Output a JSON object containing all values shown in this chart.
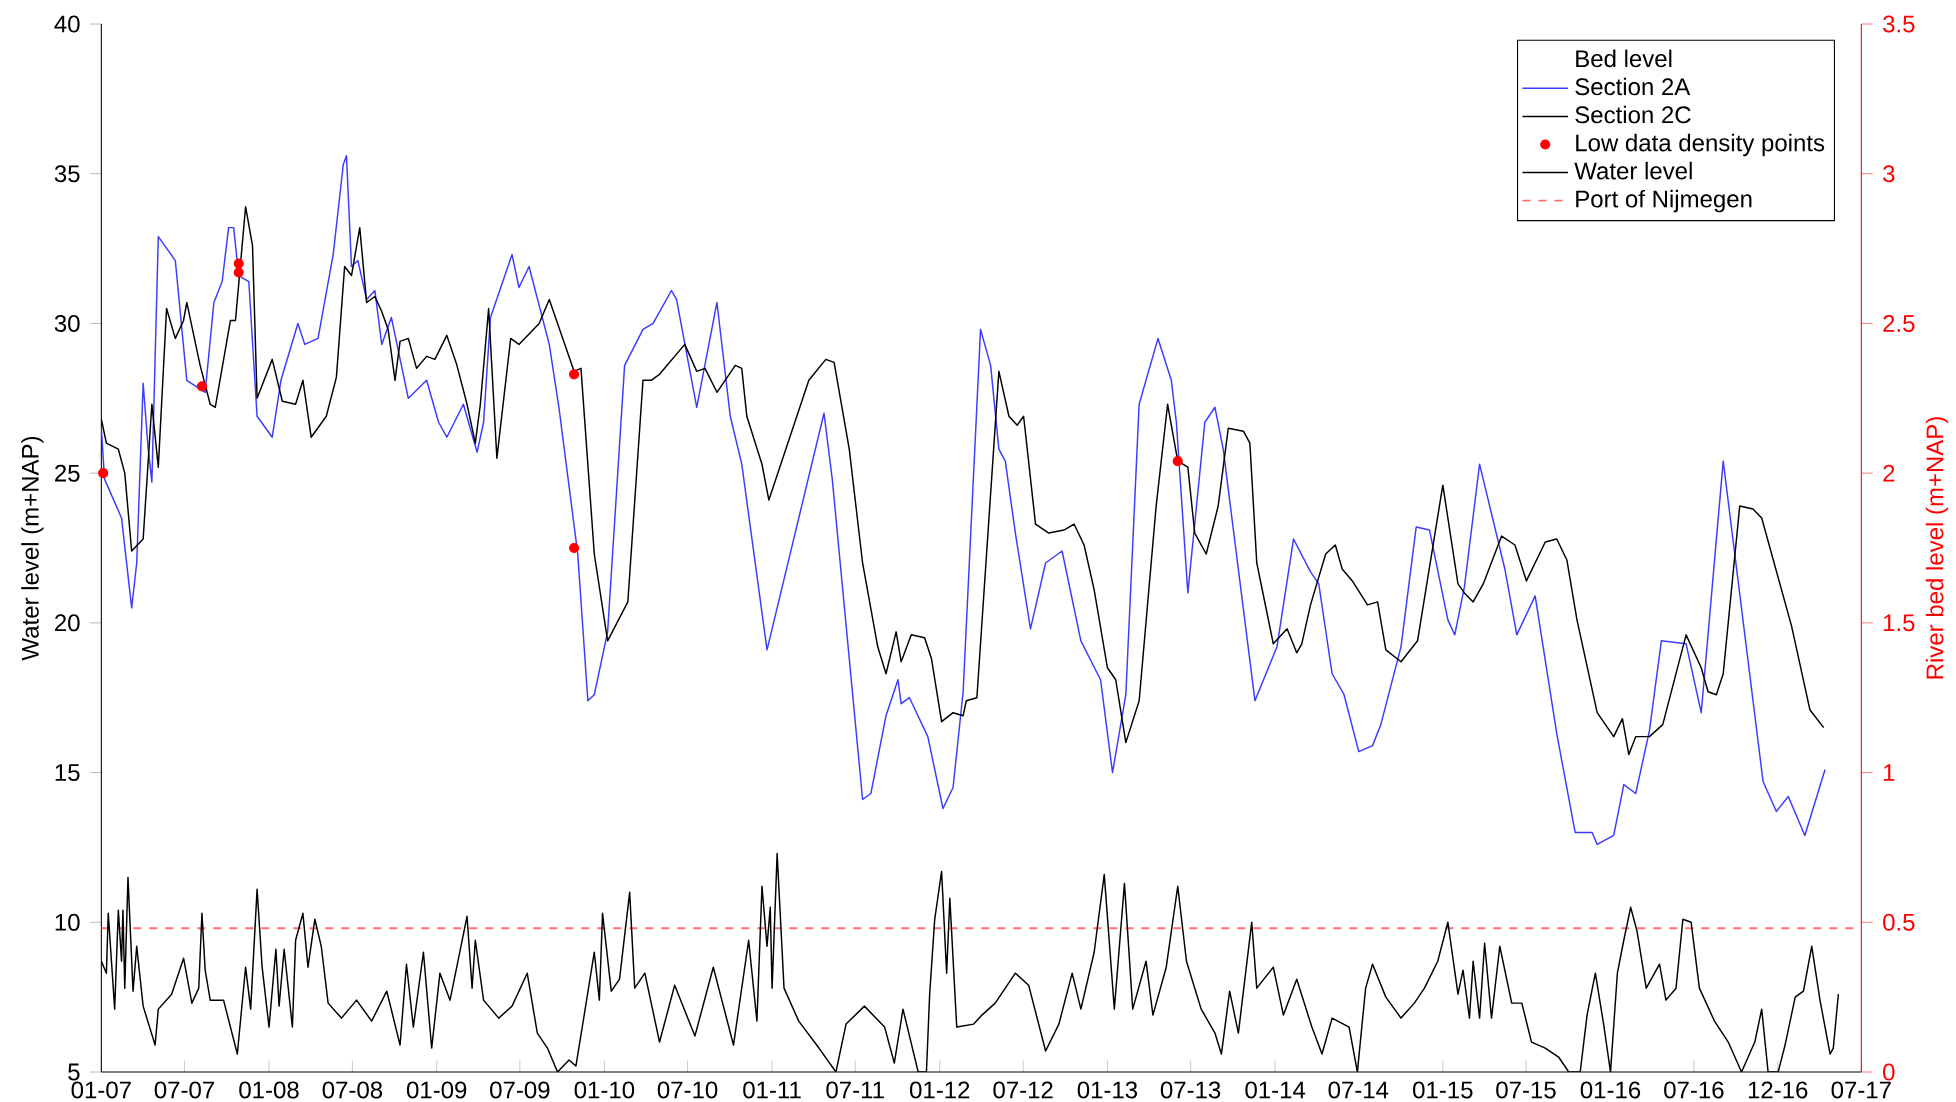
{
  "chart_data": {
    "type": "line",
    "ylabel": "Water level (m+NAP)",
    "y2label": "River bed level (m+NAP)",
    "legend_title": "Bed level",
    "legend": "top right",
    "xlim": [
      "2007-01-01",
      "2017-07-01"
    ],
    "ylim": [
      5,
      40
    ],
    "y2lim": [
      0,
      3.5
    ],
    "xticks": [
      {
        "value": "2007-01-01",
        "label": "01-07"
      },
      {
        "value": "2007-07-01",
        "label": "07-07"
      },
      {
        "value": "2008-01-01",
        "label": "01-08"
      },
      {
        "value": "2008-07-01",
        "label": "07-08"
      },
      {
        "value": "2009-01-01",
        "label": "01-09"
      },
      {
        "value": "2009-07-01",
        "label": "07-09"
      },
      {
        "value": "2010-01-01",
        "label": "01-10"
      },
      {
        "value": "2010-07-01",
        "label": "07-10"
      },
      {
        "value": "2011-01-01",
        "label": "01-11"
      },
      {
        "value": "2011-07-01",
        "label": "07-11"
      },
      {
        "value": "2012-01-01",
        "label": "01-12"
      },
      {
        "value": "2012-07-01",
        "label": "07-12"
      },
      {
        "value": "2013-01-01",
        "label": "01-13"
      },
      {
        "value": "2013-07-01",
        "label": "07-13"
      },
      {
        "value": "2014-01-01",
        "label": "01-14"
      },
      {
        "value": "2014-07-01",
        "label": "07-14"
      },
      {
        "value": "2015-01-01",
        "label": "01-15"
      },
      {
        "value": "2015-07-01",
        "label": "07-15"
      },
      {
        "value": "2016-01-01",
        "label": "01-16"
      },
      {
        "value": "2016-07-01",
        "label": "07-16"
      },
      {
        "value": "2016-12-31",
        "label": "12-16"
      },
      {
        "value": "2017-07-01",
        "label": "07-17"
      }
    ],
    "yticks": [
      5,
      10,
      15,
      20,
      25,
      30,
      35,
      40
    ],
    "y2ticks": [
      0,
      0.5,
      1,
      1.5,
      2,
      2.5,
      3,
      3.5
    ],
    "series": [
      {
        "name": "Section 2A",
        "color": "#3c3cff",
        "axis": "y2",
        "x": [
          "2007-01-01",
          "2007-01-08",
          "2007-02-14",
          "2007-03-08",
          "2007-03-19",
          "2007-04-02",
          "2007-04-13",
          "2007-04-21",
          "2007-05-05",
          "2007-06-11",
          "2007-07-06",
          "2007-08-15",
          "2007-09-03",
          "2007-09-21",
          "2007-10-05",
          "2007-10-16",
          "2007-10-27",
          "2007-11-18",
          "2007-12-06",
          "2008-01-08",
          "2008-01-27",
          "2008-03-04",
          "2008-03-19",
          "2008-04-17",
          "2008-05-20",
          "2008-06-11",
          "2008-06-18",
          "2008-06-29",
          "2008-07-13",
          "2008-08-01",
          "2008-08-19",
          "2008-09-03",
          "2008-09-24",
          "2008-10-31",
          "2008-12-10",
          "2009-01-05",
          "2009-01-23",
          "2009-02-28",
          "2009-03-30",
          "2009-04-13",
          "2009-04-28",
          "2009-06-14",
          "2009-06-29",
          "2009-07-21",
          "2009-09-03",
          "2009-09-24",
          "2009-11-04",
          "2009-11-26",
          "2009-12-10",
          "2010-01-08",
          "2010-02-14",
          "2010-03-26",
          "2010-04-17",
          "2010-05-27",
          "2010-06-07",
          "2010-07-21",
          "2010-09-03",
          "2010-10-02",
          "2010-10-27",
          "2010-12-21",
          "2011-04-24",
          "2011-05-12",
          "2011-07-17",
          "2011-08-04",
          "2011-09-06",
          "2011-10-02",
          "2011-10-09",
          "2011-10-27",
          "2011-12-06",
          "2012-01-08",
          "2012-01-30",
          "2012-02-21",
          "2012-03-30",
          "2012-04-21",
          "2012-05-09",
          "2012-05-23",
          "2012-06-14",
          "2012-07-17",
          "2012-08-19",
          "2012-09-24",
          "2012-11-04",
          "2012-12-17",
          "2013-01-12",
          "2013-02-10",
          "2013-03-11",
          "2013-04-21",
          "2013-05-20",
          "2013-05-31",
          "2013-06-25",
          "2013-08-01",
          "2013-08-23",
          "2013-09-10",
          "2013-11-18",
          "2014-01-05",
          "2014-02-10",
          "2014-03-19",
          "2014-04-06",
          "2014-05-05",
          "2014-05-31",
          "2014-07-02",
          "2014-08-01",
          "2014-08-19",
          "2014-10-02",
          "2014-11-04",
          "2014-12-03",
          "2015-01-12",
          "2015-01-27",
          "2015-02-17",
          "2015-03-22",
          "2015-04-13",
          "2015-05-16",
          "2015-06-11",
          "2015-07-21",
          "2015-09-06",
          "2015-10-16",
          "2015-11-22",
          "2015-12-03",
          "2016-01-08",
          "2016-01-30",
          "2016-02-25",
          "2016-03-26",
          "2016-04-21",
          "2016-06-14",
          "2016-07-17",
          "2016-09-03",
          "2016-11-29",
          "2016-12-28",
          "2017-01-23",
          "2017-02-28",
          "2017-04-13"
        ],
        "values": [
          2.15,
          1.98,
          1.85,
          1.55,
          1.7,
          2.3,
          2.08,
          1.97,
          2.79,
          2.71,
          2.31,
          2.27,
          2.57,
          2.64,
          2.82,
          2.82,
          2.66,
          2.64,
          2.19,
          2.12,
          2.31,
          2.5,
          2.43,
          2.45,
          2.73,
          3.03,
          3.06,
          2.69,
          2.71,
          2.58,
          2.61,
          2.43,
          2.52,
          2.25,
          2.31,
          2.17,
          2.12,
          2.23,
          2.07,
          2.17,
          2.52,
          2.73,
          2.62,
          2.69,
          2.43,
          2.22,
          1.73,
          1.24,
          1.26,
          1.47,
          2.36,
          2.48,
          2.5,
          2.61,
          2.58,
          2.22,
          2.57,
          2.19,
          2.03,
          1.41,
          2.2,
          1.98,
          0.91,
          0.93,
          1.19,
          1.31,
          1.23,
          1.25,
          1.12,
          0.88,
          0.95,
          1.27,
          2.48,
          2.36,
          2.08,
          2.04,
          1.8,
          1.48,
          1.7,
          1.74,
          1.44,
          1.31,
          1.0,
          1.26,
          2.23,
          2.45,
          2.31,
          2.17,
          1.6,
          2.17,
          2.22,
          2.08,
          1.24,
          1.42,
          1.78,
          1.67,
          1.63,
          1.33,
          1.26,
          1.07,
          1.09,
          1.16,
          1.42,
          1.82,
          1.81,
          1.51,
          1.46,
          1.62,
          2.03,
          1.89,
          1.68,
          1.46,
          1.59,
          1.13,
          0.8,
          0.8,
          0.76,
          0.79,
          0.96,
          0.93,
          1.14,
          1.44,
          1.43,
          1.2,
          2.04,
          0.97,
          0.87,
          0.92,
          0.79,
          1.01
        ]
      },
      {
        "name": "Section 2C",
        "color": "#000000",
        "axis": "y2",
        "x": [
          "2007-01-01",
          "2007-01-12",
          "2007-02-07",
          "2007-02-21",
          "2007-03-08",
          "2007-04-02",
          "2007-04-21",
          "2007-05-05",
          "2007-05-23",
          "2007-06-11",
          "2007-06-29",
          "2007-07-06",
          "2007-08-04",
          "2007-08-26",
          "2007-09-06",
          "2007-10-09",
          "2007-10-20",
          "2007-11-11",
          "2007-11-26",
          "2007-12-06",
          "2008-01-08",
          "2008-01-30",
          "2008-02-28",
          "2008-03-15",
          "2008-04-02",
          "2008-05-05",
          "2008-05-27",
          "2008-06-14",
          "2008-06-29",
          "2008-07-17",
          "2008-08-01",
          "2008-08-19",
          "2008-09-03",
          "2008-09-17",
          "2008-10-02",
          "2008-10-13",
          "2008-10-31",
          "2008-11-18",
          "2008-12-10",
          "2008-12-28",
          "2009-01-23",
          "2009-02-14",
          "2009-03-08",
          "2009-03-26",
          "2009-04-06",
          "2009-04-24",
          "2009-05-12",
          "2009-06-11",
          "2009-06-29",
          "2009-08-12",
          "2009-09-03",
          "2009-10-27",
          "2009-11-11",
          "2009-12-10",
          "2010-01-08",
          "2010-02-21",
          "2010-03-26",
          "2010-04-13",
          "2010-05-01",
          "2010-06-25",
          "2010-07-21",
          "2010-08-08",
          "2010-09-03",
          "2010-10-13",
          "2010-10-27",
          "2010-11-07",
          "2010-12-10",
          "2010-12-25",
          "2011-03-22",
          "2011-04-28",
          "2011-05-16",
          "2011-06-18",
          "2011-07-17",
          "2011-08-19",
          "2011-09-06",
          "2011-09-28",
          "2011-10-09",
          "2011-10-31",
          "2011-11-29",
          "2011-12-14",
          "2012-01-05",
          "2012-01-30",
          "2012-02-21",
          "2012-02-28",
          "2012-03-22",
          "2012-05-09",
          "2012-05-31",
          "2012-06-18",
          "2012-07-02",
          "2012-07-28",
          "2012-08-26",
          "2012-09-28",
          "2012-10-20",
          "2012-11-11",
          "2012-12-03",
          "2013-01-01",
          "2013-01-19",
          "2013-02-10",
          "2013-03-11",
          "2013-04-17",
          "2013-05-12",
          "2013-06-03",
          "2013-06-25",
          "2013-07-10",
          "2013-08-04",
          "2013-08-30",
          "2013-09-21",
          "2013-10-24",
          "2013-11-07",
          "2013-11-22",
          "2013-12-28",
          "2014-01-27",
          "2014-02-17",
          "2014-02-28",
          "2014-03-19",
          "2014-04-21",
          "2014-05-12",
          "2014-05-27",
          "2014-06-18",
          "2014-07-21",
          "2014-08-12",
          "2014-08-30",
          "2014-10-02",
          "2014-11-07",
          "2015-01-01",
          "2015-02-03",
          "2015-02-17",
          "2015-03-08",
          "2015-03-30",
          "2015-05-09",
          "2015-06-07",
          "2015-07-02",
          "2015-08-12",
          "2015-09-06",
          "2015-09-28",
          "2015-10-20",
          "2015-12-03",
          "2016-01-08",
          "2016-01-27",
          "2016-02-10",
          "2016-02-25",
          "2016-03-26",
          "2016-04-24",
          "2016-06-14",
          "2016-07-17",
          "2016-08-01",
          "2016-08-19",
          "2016-09-03",
          "2016-10-09",
          "2016-11-07",
          "2016-11-26",
          "2017-01-30",
          "2017-03-11",
          "2017-04-10"
        ],
        "values": [
          2.18,
          2.1,
          2.08,
          2.0,
          1.74,
          1.78,
          2.23,
          2.02,
          2.55,
          2.45,
          2.51,
          2.57,
          2.36,
          2.23,
          2.22,
          2.51,
          2.51,
          2.89,
          2.76,
          2.25,
          2.38,
          2.24,
          2.23,
          2.31,
          2.12,
          2.19,
          2.32,
          2.69,
          2.66,
          2.82,
          2.57,
          2.59,
          2.54,
          2.48,
          2.31,
          2.44,
          2.45,
          2.35,
          2.39,
          2.38,
          2.46,
          2.36,
          2.23,
          2.1,
          2.23,
          2.55,
          2.05,
          2.45,
          2.43,
          2.5,
          2.58,
          2.34,
          2.35,
          1.73,
          1.44,
          1.57,
          2.31,
          2.31,
          2.33,
          2.43,
          2.34,
          2.35,
          2.27,
          2.36,
          2.35,
          2.19,
          2.03,
          1.91,
          2.31,
          2.38,
          2.37,
          2.08,
          1.7,
          1.42,
          1.33,
          1.47,
          1.37,
          1.46,
          1.45,
          1.38,
          1.17,
          1.2,
          1.19,
          1.24,
          1.25,
          2.34,
          2.19,
          2.16,
          2.19,
          1.83,
          1.8,
          1.81,
          1.83,
          1.76,
          1.61,
          1.35,
          1.31,
          1.1,
          1.24,
          1.89,
          2.23,
          2.04,
          2.02,
          1.8,
          1.73,
          1.89,
          2.15,
          2.14,
          2.1,
          1.7,
          1.43,
          1.48,
          1.4,
          1.43,
          1.56,
          1.73,
          1.76,
          1.68,
          1.64,
          1.56,
          1.57,
          1.41,
          1.37,
          1.44,
          1.96,
          1.63,
          1.6,
          1.57,
          1.63,
          1.79,
          1.76,
          1.64,
          1.77,
          1.78,
          1.71,
          1.51,
          1.2,
          1.12,
          1.18,
          1.06,
          1.12,
          1.12,
          1.16,
          1.46,
          1.35,
          1.27,
          1.26,
          1.33,
          1.89,
          1.88,
          1.85,
          1.49,
          1.21,
          1.15
        ]
      },
      {
        "name": "Low data density points",
        "type": "scatter",
        "marker": "circle",
        "color": "#ff0000",
        "axis": "y2",
        "x": [
          "2007-01-05",
          "2007-08-08",
          "2007-10-27",
          "2007-10-27",
          "2009-10-27",
          "2009-10-27",
          "2013-06-03"
        ],
        "values": [
          2.0,
          2.29,
          2.7,
          2.67,
          2.33,
          1.75,
          2.04
        ]
      },
      {
        "name": "Water level",
        "color": "#000000",
        "x": [
          "2007-01-01",
          "2007-01-12",
          "2007-01-16",
          "2007-01-27",
          "2007-01-30",
          "2007-02-07",
          "2007-02-14",
          "2007-02-17",
          "2007-02-21",
          "2007-02-28",
          "2007-03-11",
          "2007-03-19",
          "2007-04-02",
          "2007-04-28",
          "2007-05-05",
          "2007-06-03",
          "2007-06-29",
          "2007-07-17",
          "2007-08-01",
          "2007-08-08",
          "2007-08-15",
          "2007-08-26",
          "2007-09-24",
          "2007-10-24",
          "2007-11-11",
          "2007-11-22",
          "2007-12-06",
          "2007-12-17",
          "2008-01-01",
          "2008-01-16",
          "2008-01-23",
          "2008-02-03",
          "2008-02-21",
          "2008-02-28",
          "2008-03-15",
          "2008-03-26",
          "2008-04-10",
          "2008-04-24",
          "2008-05-09",
          "2008-06-07",
          "2008-07-10",
          "2008-08-12",
          "2008-09-14",
          "2008-10-13",
          "2008-10-27",
          "2008-11-11",
          "2008-12-03",
          "2008-12-21",
          "2009-01-08",
          "2009-01-30",
          "2009-03-08",
          "2009-03-19",
          "2009-03-26",
          "2009-04-13",
          "2009-05-16",
          "2009-06-14",
          "2009-07-17",
          "2009-08-08",
          "2009-08-30",
          "2009-09-21",
          "2009-10-16",
          "2009-10-31",
          "2009-11-18",
          "2009-12-10",
          "2009-12-21",
          "2009-12-28",
          "2010-01-16",
          "2010-02-03",
          "2010-02-25",
          "2010-03-08",
          "2010-03-30",
          "2010-05-01",
          "2010-06-03",
          "2010-07-17",
          "2010-08-26",
          "2010-10-09",
          "2010-11-11",
          "2010-11-29",
          "2010-12-10",
          "2010-12-21",
          "2010-12-28",
          "2011-01-01",
          "2011-01-12",
          "2011-01-27",
          "2011-02-28",
          "2011-04-13",
          "2011-05-20",
          "2011-06-11",
          "2011-07-21",
          "2011-09-03",
          "2011-09-24",
          "2011-10-13",
          "2011-11-15",
          "2011-12-03",
          "2011-12-10",
          "2011-12-21",
          "2012-01-05",
          "2012-01-16",
          "2012-01-23",
          "2012-02-07",
          "2012-03-15",
          "2012-04-02",
          "2012-05-01",
          "2012-06-14",
          "2012-07-13",
          "2012-08-19",
          "2012-09-17",
          "2012-10-16",
          "2012-11-04",
          "2012-12-03",
          "2012-12-25",
          "2013-01-16",
          "2013-02-07",
          "2013-02-25",
          "2013-03-26",
          "2013-04-10",
          "2013-05-09",
          "2013-06-03",
          "2013-06-22",
          "2013-07-24",
          "2013-08-23",
          "2013-09-06",
          "2013-09-24",
          "2013-10-13",
          "2013-11-11",
          "2013-11-22",
          "2013-12-28",
          "2014-01-19",
          "2014-02-17",
          "2014-03-22",
          "2014-04-13",
          "2014-05-05",
          "2014-06-11",
          "2014-06-29",
          "2014-07-17",
          "2014-08-01",
          "2014-08-30",
          "2014-10-02",
          "2014-10-31",
          "2014-11-22",
          "2014-12-21",
          "2015-01-12",
          "2015-02-03",
          "2015-02-14",
          "2015-02-28",
          "2015-03-08",
          "2015-03-22",
          "2015-04-02",
          "2015-04-17",
          "2015-05-05",
          "2015-05-31",
          "2015-06-22",
          "2015-07-13",
          "2015-08-12",
          "2015-09-10",
          "2015-10-02",
          "2015-10-27",
          "2015-11-11",
          "2015-11-29",
          "2015-12-17",
          "2016-01-01",
          "2016-01-16",
          "2016-01-30",
          "2016-02-14",
          "2016-02-28",
          "2016-03-19",
          "2016-04-17",
          "2016-05-01",
          "2016-05-23",
          "2016-06-07",
          "2016-06-25",
          "2016-07-13",
          "2016-08-15",
          "2016-09-14",
          "2016-10-13",
          "2016-11-11",
          "2016-11-26",
          "2016-12-10",
          "2017-01-01",
          "2017-01-16",
          "2017-02-07",
          "2017-02-25",
          "2017-03-15",
          "2017-04-02",
          "2017-04-24",
          "2017-05-01",
          "2017-05-12"
        ],
        "values": [
          8.7,
          8.3,
          10.3,
          7.8,
          7.1,
          10.4,
          8.7,
          10.4,
          7.8,
          11.5,
          7.7,
          9.2,
          7.2,
          5.9,
          7.1,
          7.6,
          8.8,
          7.3,
          7.8,
          10.3,
          8.4,
          7.4,
          7.4,
          5.6,
          8.5,
          7.1,
          11.1,
          8.5,
          6.5,
          9.1,
          7.2,
          9.1,
          6.5,
          9.4,
          10.3,
          8.5,
          10.1,
          9.2,
          7.3,
          6.8,
          7.4,
          6.7,
          7.7,
          5.9,
          8.6,
          6.5,
          9.0,
          5.8,
          8.3,
          7.4,
          10.2,
          7.8,
          9.4,
          7.4,
          6.8,
          7.2,
          8.3,
          6.3,
          5.8,
          5.0,
          5.4,
          5.2,
          6.9,
          9.0,
          7.4,
          10.3,
          7.7,
          8.1,
          11.0,
          7.8,
          8.3,
          6.0,
          7.9,
          6.2,
          8.5,
          5.9,
          9.4,
          6.7,
          11.2,
          9.2,
          10.5,
          7.8,
          12.3,
          7.8,
          6.7,
          5.8,
          5.0,
          6.6,
          7.2,
          6.5,
          5.3,
          7.1,
          5.0,
          5.0,
          7.6,
          10.1,
          11.7,
          8.3,
          10.8,
          6.5,
          6.6,
          6.9,
          7.3,
          8.3,
          7.9,
          5.7,
          6.6,
          8.3,
          7.1,
          9.0,
          11.6,
          7.1,
          11.3,
          7.1,
          8.7,
          6.9,
          8.5,
          11.2,
          8.7,
          7.1,
          6.3,
          5.6,
          7.7,
          6.3,
          10.0,
          7.8,
          8.5,
          6.9,
          8.1,
          6.5,
          5.6,
          6.8,
          6.5,
          5.0,
          7.8,
          8.6,
          7.5,
          6.8,
          7.3,
          7.8,
          8.7,
          10.0,
          7.6,
          8.4,
          6.8,
          8.7,
          6.8,
          9.3,
          6.8,
          9.2,
          7.3,
          7.3,
          6.0,
          5.8,
          5.5,
          5.0,
          5.0,
          6.9,
          8.3,
          6.6,
          5.0,
          8.3,
          9.4,
          10.5,
          9.7,
          7.8,
          8.6,
          7.4,
          7.8,
          10.1,
          10.0,
          7.8,
          6.7,
          6.0,
          5.0,
          6.0,
          7.1,
          5.0,
          5.0,
          5.9,
          7.5,
          7.7,
          9.2,
          7.4,
          5.6,
          5.8,
          7.6
        ]
      }
    ],
    "ref_lines": [
      {
        "axis": "y",
        "value": 9.8,
        "label": "Port of Nijmegen",
        "color": "#ff7070",
        "line_style": "dashed"
      }
    ]
  }
}
